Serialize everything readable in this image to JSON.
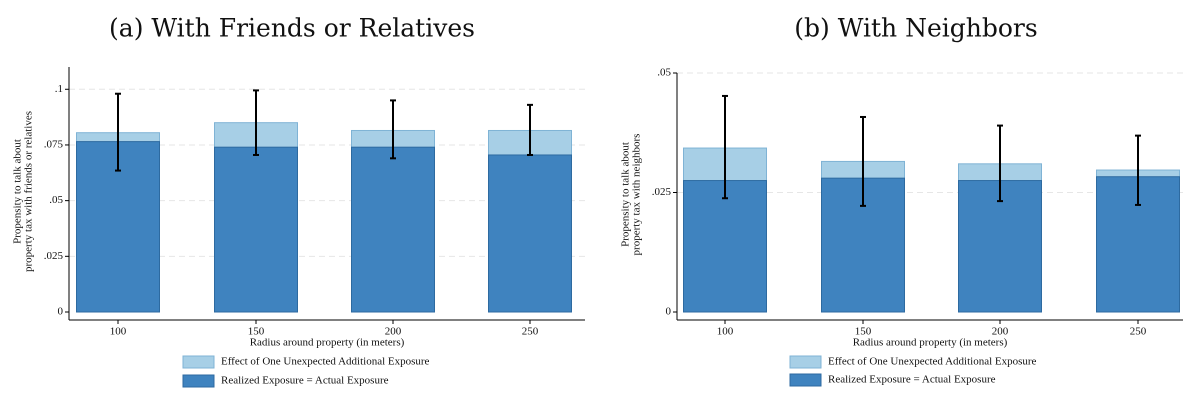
{
  "colors": {
    "realized": "#3f83bf",
    "realized_stroke": "#2d6aa0",
    "effect": "#a7cfe6",
    "effect_stroke": "#7fb3d5",
    "errorbar": "#000000",
    "grid": "#e6e6e6"
  },
  "chart_data": [
    {
      "type": "bar",
      "title": "(a) With Friends or Relatives",
      "xlabel": "Radius around property (in meters)",
      "ylabel_lines": [
        "Propensity to talk about",
        "property tax with friends or relatives"
      ],
      "categories": [
        "100",
        "150",
        "200",
        "250"
      ],
      "ylim": [
        0,
        0.11
      ],
      "yticks": [
        0,
        0.025,
        0.05,
        0.075,
        0.1
      ],
      "ytick_labels": [
        "0",
        ".025",
        ".05",
        ".075",
        ".1"
      ],
      "series": [
        {
          "name": "Realized Exposure = Actual Exposure",
          "values": [
            0.0765,
            0.074,
            0.074,
            0.0705
          ]
        },
        {
          "name": "Effect of One Unexpected Additional Exposure",
          "values": [
            0.0805,
            0.085,
            0.0815,
            0.0815
          ]
        }
      ],
      "error_bars": [
        {
          "low": 0.0635,
          "high": 0.098
        },
        {
          "low": 0.0705,
          "high": 0.0995
        },
        {
          "low": 0.069,
          "high": 0.095
        },
        {
          "low": 0.0705,
          "high": 0.093
        }
      ],
      "grid": true,
      "legend_position": "bottom-center"
    },
    {
      "type": "bar",
      "title": "(b) With Neighbors",
      "xlabel": "Radius around property (in meters)",
      "ylabel_lines": [
        "Propensity to talk about",
        "property tax with neighbors"
      ],
      "categories": [
        "100",
        "150",
        "200",
        "250"
      ],
      "ylim": [
        0,
        0.05
      ],
      "yticks": [
        0,
        0.025,
        0.05
      ],
      "ytick_labels": [
        "0",
        ".025",
        ".05"
      ],
      "series": [
        {
          "name": "Realized Exposure = Actual Exposure",
          "values": [
            0.0275,
            0.028,
            0.0275,
            0.0283
          ]
        },
        {
          "name": "Effect of One Unexpected Additional Exposure",
          "values": [
            0.0343,
            0.0315,
            0.031,
            0.0297
          ]
        }
      ],
      "error_bars": [
        {
          "low": 0.0238,
          "high": 0.0452
        },
        {
          "low": 0.0222,
          "high": 0.0408
        },
        {
          "low": 0.0232,
          "high": 0.039
        },
        {
          "low": 0.0224,
          "high": 0.0369
        }
      ],
      "grid": true,
      "legend_position": "bottom-center"
    }
  ]
}
